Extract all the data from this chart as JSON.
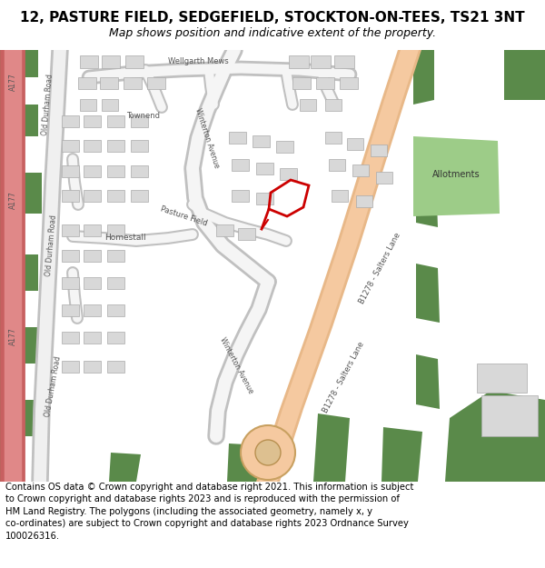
{
  "title": "12, PASTURE FIELD, SEDGEFIELD, STOCKTON-ON-TEES, TS21 3NT",
  "subtitle": "Map shows position and indicative extent of the property.",
  "footer": "Contains OS data © Crown copyright and database right 2021. This information is subject\nto Crown copyright and database rights 2023 and is reproduced with the permission of\nHM Land Registry. The polygons (including the associated geometry, namely x, y\nco-ordinates) are subject to Crown copyright and database rights 2023 Ordnance Survey\n100026316.",
  "title_fontsize": 11,
  "subtitle_fontsize": 9,
  "footer_fontsize": 7.5,
  "map_bg": "#f5f4f0",
  "road_main_color": "#f5c9a0",
  "road_minor_color": "#ffffff",
  "road_minor_edge": "#c8c8c8",
  "building_face": "#d8d8d8",
  "building_edge": "#aaaaaa",
  "green_dark": "#5a8a4a",
  "green_light": "#8ab878",
  "allotment_color": "#9dcc88",
  "a177_color": "#e08080",
  "plot_color": "#cc0000",
  "text_road": "#555555",
  "bg_white": "#ffffff"
}
